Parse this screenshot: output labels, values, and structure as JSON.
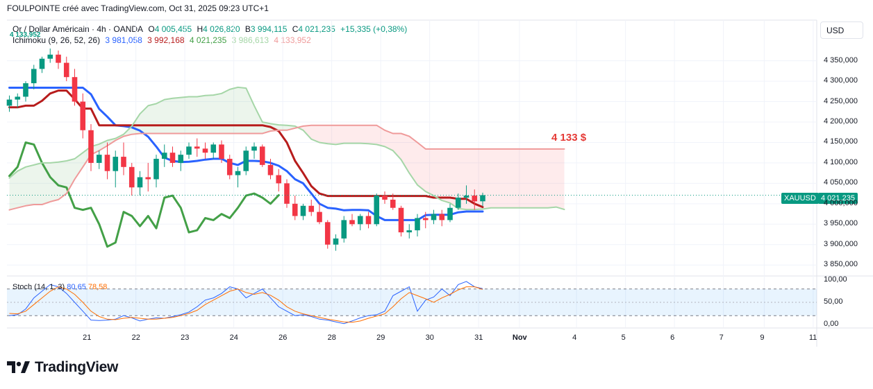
{
  "header": {
    "caption": "FOULPOINTE créé avec TradingView.com, Oct 31, 2025 09:23 UTC+1"
  },
  "legend": {
    "symbol": "Or / Dollar Américain · 4h · OANDA",
    "o_label": "O",
    "o_val": "4 005,455",
    "h_label": "H",
    "h_val": "4 026,820",
    "b_label": "B",
    "b_val": "3 994,115",
    "c_label": "C",
    "c_val": "4 021,235",
    "change": "+15,335 (+0,38%)",
    "overlap_tag": "4 133,952",
    "ichimoku_label": "Ichimoku (9, 26, 52, 26)",
    "ichi_vals": [
      "3 981,058",
      "3 992,168",
      "4 021,235",
      "3 986,613",
      "4 133,952"
    ]
  },
  "currency_button": "USD",
  "y_axis": {
    "labels": [
      "4 350,000",
      "4 300,000",
      "4 250,000",
      "4 200,000",
      "4 150,000",
      "4 100,000",
      "4 050,000",
      "4 000,000",
      "3 950,000",
      "3 900,000",
      "3 850,000"
    ]
  },
  "stoch_axis": {
    "labels": [
      "100,00",
      "50,00",
      "0,00"
    ]
  },
  "x_axis": {
    "labels": [
      "21",
      "22",
      "23",
      "24",
      "26",
      "28",
      "29",
      "30",
      "31",
      "Nov",
      "4",
      "5",
      "6",
      "7",
      "9",
      "11"
    ]
  },
  "price_tag": {
    "symbol": "XAUUSD",
    "value": "4 021,235"
  },
  "annotation": {
    "text": "4 133 $"
  },
  "stoch": {
    "label": "Stoch (14, 1, 3)",
    "k_value": "80,65",
    "d_value": "78,58"
  },
  "brand": {
    "name": "TradingView"
  },
  "colors": {
    "up": "#089981",
    "down": "#f23645",
    "tenkan": "#2962ff",
    "kijun": "#b71c1c",
    "chikou": "#43a047",
    "spanA": "#a5d6a7",
    "spanB": "#ef9a9a",
    "stoch_k": "#2962ff",
    "stoch_d": "#ff6d00"
  },
  "chart_data": {
    "type": "candlestick",
    "title": "Or / Dollar Américain · 4h · OANDA",
    "ylim": [
      3830,
      4385
    ],
    "y_ticks": [
      3850,
      3900,
      3950,
      4000,
      4050,
      4100,
      4150,
      4200,
      4250,
      4300,
      4350
    ],
    "x_day_ticks": [
      {
        "label": "21",
        "index": 9.5
      },
      {
        "label": "22",
        "index": 15.5
      },
      {
        "label": "23",
        "index": 21.5
      },
      {
        "label": "24",
        "index": 27.5
      },
      {
        "label": "26",
        "index": 33.5
      },
      {
        "label": "28",
        "index": 39.5
      },
      {
        "label": "29",
        "index": 45.5
      },
      {
        "label": "30",
        "index": 51.5
      },
      {
        "label": "31",
        "index": 57.5
      },
      {
        "label": "Nov",
        "index": 62.5
      },
      {
        "label": "4",
        "index": 69.5
      },
      {
        "label": "5",
        "index": 75.5
      },
      {
        "label": "6",
        "index": 81.5
      },
      {
        "label": "7",
        "index": 87.5
      },
      {
        "label": "9",
        "index": 92.5
      },
      {
        "label": "11",
        "index": 98.5
      }
    ],
    "candles": [
      [
        4240,
        4265,
        4225,
        4255
      ],
      [
        4255,
        4270,
        4235,
        4262
      ],
      [
        4262,
        4300,
        4250,
        4295
      ],
      [
        4295,
        4340,
        4280,
        4330
      ],
      [
        4330,
        4360,
        4320,
        4355
      ],
      [
        4355,
        4380,
        4345,
        4365
      ],
      [
        4365,
        4375,
        4330,
        4345
      ],
      [
        4345,
        4360,
        4300,
        4310
      ],
      [
        4310,
        4330,
        4240,
        4250
      ],
      [
        4250,
        4270,
        4160,
        4180
      ],
      [
        4180,
        4195,
        4080,
        4100
      ],
      [
        4100,
        4130,
        4085,
        4120
      ],
      [
        4120,
        4150,
        4060,
        4080
      ],
      [
        4080,
        4130,
        4040,
        4115
      ],
      [
        4115,
        4150,
        4070,
        4090
      ],
      [
        4090,
        4100,
        4020,
        4040
      ],
      [
        4040,
        4080,
        4020,
        4065
      ],
      [
        4065,
        4100,
        4030,
        4060
      ],
      [
        4060,
        4120,
        4040,
        4110
      ],
      [
        4110,
        4145,
        4090,
        4125
      ],
      [
        4125,
        4140,
        4090,
        4100
      ],
      [
        4100,
        4130,
        4080,
        4120
      ],
      [
        4120,
        4150,
        4110,
        4140
      ],
      [
        4140,
        4160,
        4115,
        4135
      ],
      [
        4135,
        4150,
        4110,
        4125
      ],
      [
        4125,
        4150,
        4110,
        4145
      ],
      [
        4145,
        4155,
        4100,
        4110
      ],
      [
        4110,
        4120,
        4060,
        4070
      ],
      [
        4070,
        4090,
        4040,
        4080
      ],
      [
        4080,
        4140,
        4070,
        4130
      ],
      [
        4130,
        4150,
        4110,
        4140
      ],
      [
        4140,
        4145,
        4090,
        4095
      ],
      [
        4095,
        4110,
        4060,
        4070
      ],
      [
        4070,
        4085,
        4030,
        4050
      ],
      [
        4050,
        4060,
        3990,
        4000
      ],
      [
        4000,
        4020,
        3960,
        3970
      ],
      [
        3970,
        4000,
        3960,
        3995
      ],
      [
        3995,
        4010,
        3970,
        3980
      ],
      [
        3980,
        4000,
        3950,
        3955
      ],
      [
        3955,
        3960,
        3890,
        3900
      ],
      [
        3900,
        3925,
        3885,
        3915
      ],
      [
        3915,
        3970,
        3905,
        3960
      ],
      [
        3960,
        3975,
        3945,
        3950
      ],
      [
        3950,
        3975,
        3935,
        3970
      ],
      [
        3970,
        3980,
        3940,
        3950
      ],
      [
        3950,
        4025,
        3945,
        4020
      ],
      [
        4020,
        4030,
        4000,
        4010
      ],
      [
        4010,
        4025,
        3985,
        3990
      ],
      [
        3990,
        3995,
        3920,
        3930
      ],
      [
        3930,
        3950,
        3915,
        3935
      ],
      [
        3935,
        3975,
        3920,
        3965
      ],
      [
        3965,
        3980,
        3940,
        3960
      ],
      [
        3960,
        3985,
        3950,
        3975
      ],
      [
        3975,
        3985,
        3945,
        3960
      ],
      [
        3960,
        4000,
        3955,
        3990
      ],
      [
        3990,
        4025,
        3985,
        4015
      ],
      [
        4015,
        4045,
        4000,
        4020
      ],
      [
        4020,
        4035,
        3985,
        4006
      ],
      [
        4006,
        4027,
        3994,
        4021
      ]
    ],
    "series": [
      {
        "name": "Tenkan-sen (conversion)",
        "start_index": 0,
        "values": [
          4284,
          4284,
          4284,
          4284,
          4284,
          4284,
          4284,
          4284,
          4284,
          4284,
          4268,
          4232,
          4213,
          4192,
          4190,
          4187,
          4179,
          4164,
          4140,
          4113,
          4105,
          4102,
          4103,
          4105,
          4108,
          4110,
          4110,
          4100,
          4095,
          4105,
          4105,
          4104,
          4100,
          4093,
          4080,
          4060,
          4050,
          4025,
          4000,
          3990,
          3988,
          3984,
          3985,
          3985,
          3984,
          3970,
          3960,
          3960,
          3960,
          3960,
          3960,
          3972,
          3973,
          3973,
          3973,
          3979,
          3981,
          3981,
          3981
        ]
      },
      {
        "name": "Kijun-sen (base)",
        "start_index": 0,
        "values": [
          4236,
          4236,
          4240,
          4240,
          4252,
          4270,
          4277,
          4277,
          4256,
          4233,
          4233,
          4192,
          4192,
          4192,
          4192,
          4192,
          4192,
          4192,
          4192,
          4192,
          4192,
          4192,
          4192,
          4192,
          4192,
          4192,
          4192,
          4192,
          4192,
          4192,
          4192,
          4192,
          4188,
          4178,
          4150,
          4105,
          4075,
          4043,
          4025,
          4019,
          4019,
          4019,
          4019,
          4019,
          4019,
          4019,
          4019,
          4019,
          4019,
          4019,
          4019,
          4019,
          4015,
          4015,
          4015,
          4012,
          4012,
          4000,
          3992
        ]
      },
      {
        "name": "Chikou span (lagging)",
        "start_index": 0,
        "values": [
          4068,
          4090,
          4150,
          4145,
          4100,
          4065,
          4045,
          4040,
          3990,
          3985,
          3990,
          3950,
          3895,
          3905,
          3980,
          3970,
          3945,
          3970,
          3940,
          4015,
          4020,
          3990,
          3930,
          3935,
          3965,
          3960,
          3975,
          3965,
          3990,
          4020,
          4025,
          4015,
          4000,
          4021
        ]
      },
      {
        "name": "Senkou span A",
        "start_index": 0,
        "values": [
          4063,
          4080,
          4090,
          4095,
          4100,
          4100,
          4102,
          4105,
          4110,
          4125,
          4140,
          4146,
          4155,
          4160,
          4170,
          4190,
          4220,
          4240,
          4245,
          4255,
          4258,
          4260,
          4262,
          4262,
          4265,
          4266,
          4270,
          4280,
          4285,
          4283,
          4240,
          4200,
          4196,
          4193,
          4192,
          4190,
          4180,
          4158,
          4150,
          4147,
          4145,
          4148,
          4148,
          4148,
          4147,
          4145,
          4140,
          4130,
          4108,
          4075,
          4046,
          4030,
          4020,
          4008,
          4002,
          3988,
          3986,
          3986,
          3987,
          3990,
          3990,
          3990,
          3990,
          3990,
          3990,
          3990,
          3990,
          3992,
          3986
        ]
      },
      {
        "name": "Senkou span B",
        "start_index": 0,
        "values": [
          3985,
          3990,
          3995,
          3998,
          3998,
          4005,
          4010,
          4025,
          4060,
          4090,
          4120,
          4130,
          4142,
          4155,
          4165,
          4170,
          4172,
          4172,
          4172,
          4172,
          4172,
          4172,
          4172,
          4172,
          4172,
          4172,
          4172,
          4172,
          4172,
          4172,
          4172,
          4172,
          4178,
          4180,
          4180,
          4185,
          4190,
          4192,
          4192,
          4192,
          4192,
          4192,
          4192,
          4192,
          4192,
          4192,
          4180,
          4172,
          4172,
          4165,
          4150,
          4134,
          4134,
          4134,
          4134,
          4134,
          4134,
          4134,
          4134,
          4134,
          4134,
          4134,
          4134,
          4134,
          4134,
          4134,
          4134,
          4134,
          4134
        ]
      }
    ],
    "stoch": {
      "ylim": [
        0,
        100
      ],
      "bands": [
        20,
        50,
        80
      ],
      "k": [
        20,
        22,
        35,
        60,
        75,
        90,
        85,
        70,
        50,
        30,
        10,
        9,
        10,
        12,
        20,
        15,
        8,
        12,
        15,
        14,
        18,
        22,
        28,
        40,
        55,
        60,
        70,
        85,
        80,
        60,
        70,
        80,
        60,
        40,
        30,
        20,
        22,
        18,
        12,
        10,
        6,
        2,
        8,
        15,
        20,
        22,
        30,
        65,
        75,
        85,
        30,
        55,
        62,
        80,
        65,
        90,
        97,
        85,
        81
      ],
      "d": [
        25,
        24,
        30,
        45,
        60,
        75,
        85,
        80,
        68,
        50,
        30,
        18,
        12,
        11,
        14,
        16,
        14,
        12,
        12,
        14,
        16,
        20,
        25,
        32,
        45,
        55,
        65,
        75,
        80,
        72,
        68,
        72,
        66,
        55,
        40,
        30,
        24,
        20,
        16,
        12,
        9,
        6,
        5,
        8,
        14,
        19,
        24,
        40,
        58,
        72,
        65,
        58,
        50,
        60,
        68,
        78,
        85,
        85,
        79
      ]
    }
  }
}
